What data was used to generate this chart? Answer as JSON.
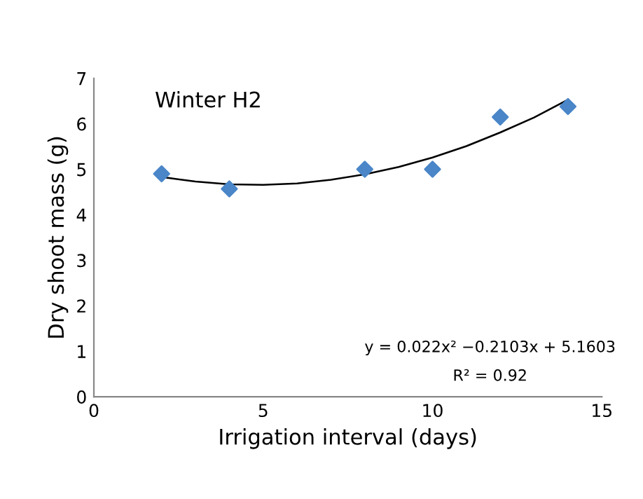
{
  "chart_data": {
    "type": "scatter",
    "title": "Winter H2",
    "xlabel": "Irrigation interval (days)",
    "ylabel": "Dry shoot mass (g)",
    "annotations": [
      "y = 0.022x² −0.2103x + 5.1603",
      "R² = 0.92"
    ],
    "series": [
      {
        "color": "#4a86c8",
        "marker": "diamond",
        "x": [
          2,
          4,
          8,
          10,
          12,
          14
        ],
        "values": [
          4.9,
          4.57,
          5.0,
          5.0,
          6.15,
          6.38
        ]
      },
      {
        "type": "line",
        "color": "#000000",
        "marker": "none",
        "x": [
          2,
          3,
          4,
          5,
          6,
          7,
          8,
          9,
          10,
          11,
          12,
          13,
          14
        ],
        "values": [
          4.83,
          4.73,
          4.67,
          4.66,
          4.69,
          4.77,
          4.89,
          5.05,
          5.26,
          5.51,
          5.81,
          6.14,
          6.53
        ]
      }
    ],
    "xlim": [
      0,
      15
    ],
    "xticks": [
      0,
      5,
      10,
      15
    ],
    "ylim": [
      0,
      7
    ],
    "yticks": [
      0,
      1,
      2,
      3,
      4,
      5,
      6,
      7
    ],
    "grid": false,
    "legend": false
  }
}
